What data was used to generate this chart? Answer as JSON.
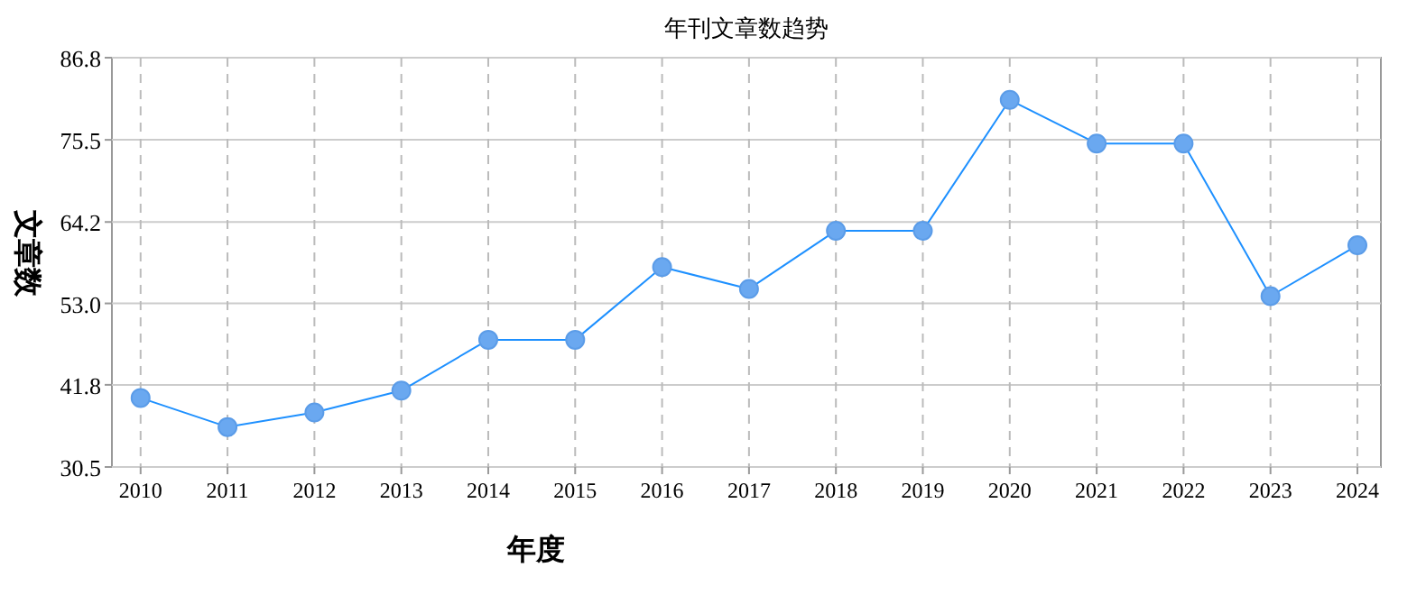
{
  "chart_data": {
    "type": "line",
    "title": "年刊文章数趋势",
    "xlabel": "年度",
    "ylabel": "文章数",
    "categories": [
      "2010",
      "2011",
      "2012",
      "2013",
      "2014",
      "2015",
      "2016",
      "2017",
      "2018",
      "2019",
      "2020",
      "2021",
      "2022",
      "2023",
      "2024"
    ],
    "series": [
      {
        "color": "#1e90ff",
        "values": [
          40,
          36,
          38,
          41,
          48,
          48,
          58,
          55,
          63,
          63,
          81,
          75,
          75,
          54,
          61
        ]
      }
    ],
    "ylim": [
      30.5,
      86.8
    ],
    "yticks": [
      30.5,
      41.8,
      {
        "value": 53,
        "label": "53.0"
      },
      64.2,
      75.5,
      86.8
    ],
    "grid": true,
    "marker": "circle",
    "line_style": "solid"
  }
}
